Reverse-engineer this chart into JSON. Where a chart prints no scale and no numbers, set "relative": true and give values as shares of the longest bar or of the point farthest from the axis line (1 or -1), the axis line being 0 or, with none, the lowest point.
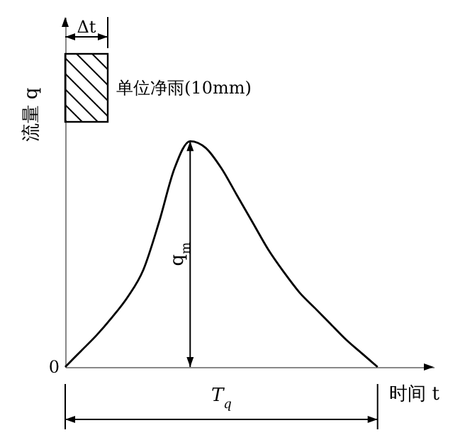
{
  "chart_data": {
    "type": "line",
    "relative": true,
    "xlabel": "时间 t",
    "ylabel": "流量 q",
    "color": "#000000",
    "categories": [
      null,
      null,
      null,
      null,
      null,
      null,
      null,
      null,
      null,
      null,
      null,
      null,
      null,
      null,
      null,
      null,
      null,
      null,
      null,
      null,
      null
    ],
    "values": [
      0,
      0.07,
      0.14,
      0.22,
      0.31,
      0.43,
      0.64,
      0.88,
      1,
      0.97,
      0.88,
      0.76,
      0.64,
      0.52,
      0.42,
      0.33,
      0.26,
      0.19,
      0.12,
      0.06,
      0
    ],
    "annotations": [
      "Δt",
      "单位净雨(10mm)",
      "q$_{m}$",
      "T$_{q}$",
      "0"
    ]
  }
}
